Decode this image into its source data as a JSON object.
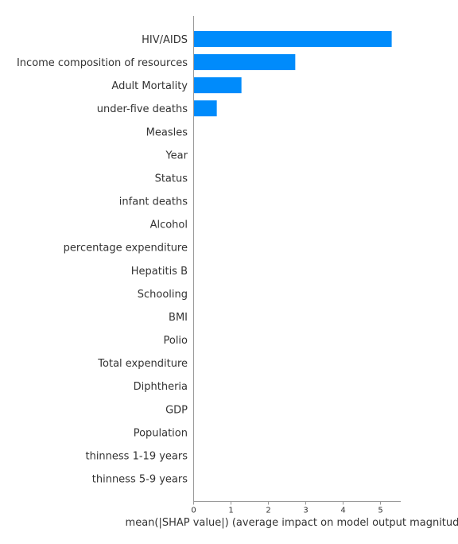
{
  "chart_data": {
    "type": "bar",
    "orientation": "horizontal",
    "categories": [
      "HIV/AIDS",
      "Income composition of resources",
      "Adult Mortality",
      "under-five deaths ",
      "Measles ",
      "Year",
      "Status",
      "infant deaths",
      "Alcohol",
      "percentage expenditure",
      "Hepatitis B",
      "Schooling",
      "BMI ",
      "Polio",
      "Total expenditure",
      "Diphtheria ",
      "GDP",
      "Population",
      "thinness  1-19 years",
      "thinness 5-9 years"
    ],
    "values": [
      5.3,
      2.72,
      1.28,
      0.62,
      0,
      0,
      0,
      0,
      0,
      0,
      0,
      0,
      0,
      0,
      0,
      0,
      0,
      0,
      0,
      0
    ],
    "xlabel": "mean(|SHAP value|) (average impact on model output magnitude)",
    "xticks": [
      "0",
      "1",
      "2",
      "3",
      "4",
      "5"
    ],
    "xlim": [
      0,
      5.6
    ],
    "bar_color": "#008bfb",
    "grid": false
  }
}
